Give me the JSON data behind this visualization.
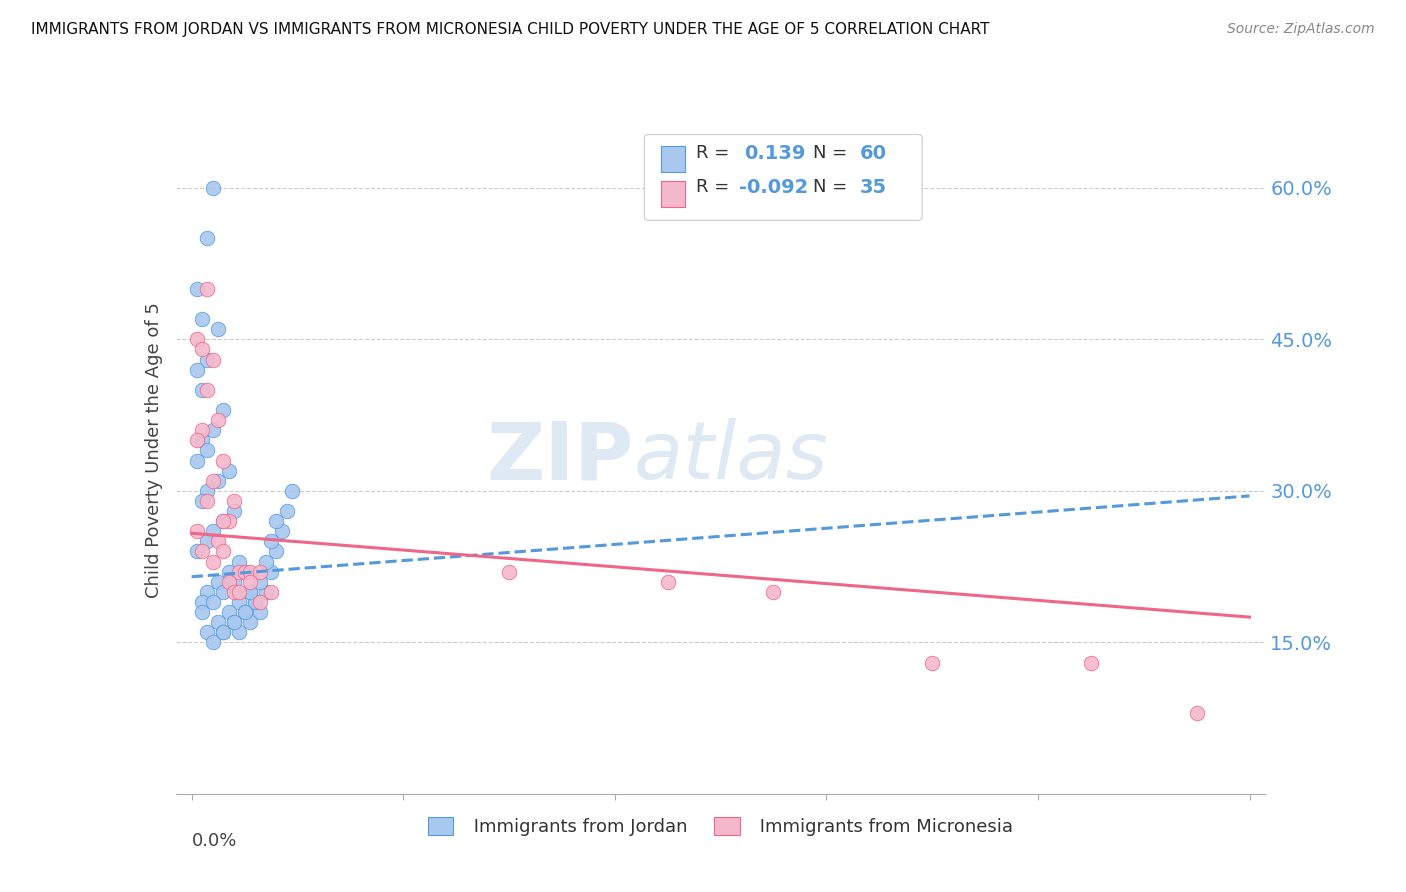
{
  "title": "IMMIGRANTS FROM JORDAN VS IMMIGRANTS FROM MICRONESIA CHILD POVERTY UNDER THE AGE OF 5 CORRELATION CHART",
  "source": "Source: ZipAtlas.com",
  "ylabel": "Child Poverty Under the Age of 5",
  "r_jordan": 0.139,
  "n_jordan": 60,
  "r_micronesia": -0.092,
  "n_micronesia": 35,
  "color_jordan": "#a8c8f0",
  "color_micronesia": "#f4b8cc",
  "trendline_jordan": "#5599dd",
  "trendline_micronesia": "#ee6688",
  "xlim": [
    0.0,
    0.2
  ],
  "ylim": [
    0.0,
    0.68
  ],
  "yticks": [
    0.15,
    0.3,
    0.45,
    0.6
  ],
  "ytick_labels": [
    "15.0%",
    "30.0%",
    "45.0%",
    "60.0%"
  ],
  "xticks": [
    0.0,
    0.04,
    0.08,
    0.12,
    0.16,
    0.2
  ],
  "jordan_x": [
    0.004,
    0.003,
    0.001,
    0.002,
    0.005,
    0.003,
    0.001,
    0.002,
    0.006,
    0.004,
    0.002,
    0.003,
    0.001,
    0.007,
    0.005,
    0.003,
    0.002,
    0.008,
    0.006,
    0.004,
    0.003,
    0.001,
    0.009,
    0.007,
    0.005,
    0.003,
    0.002,
    0.01,
    0.008,
    0.006,
    0.004,
    0.002,
    0.011,
    0.009,
    0.007,
    0.005,
    0.003,
    0.012,
    0.01,
    0.008,
    0.006,
    0.004,
    0.013,
    0.011,
    0.009,
    0.014,
    0.012,
    0.01,
    0.008,
    0.006,
    0.015,
    0.013,
    0.011,
    0.016,
    0.014,
    0.017,
    0.015,
    0.018,
    0.016,
    0.019
  ],
  "jordan_y": [
    0.6,
    0.55,
    0.5,
    0.47,
    0.46,
    0.43,
    0.42,
    0.4,
    0.38,
    0.36,
    0.35,
    0.34,
    0.33,
    0.32,
    0.31,
    0.3,
    0.29,
    0.28,
    0.27,
    0.26,
    0.25,
    0.24,
    0.23,
    0.22,
    0.21,
    0.2,
    0.19,
    0.22,
    0.21,
    0.2,
    0.19,
    0.18,
    0.2,
    0.19,
    0.18,
    0.17,
    0.16,
    0.19,
    0.18,
    0.17,
    0.16,
    0.15,
    0.18,
    0.17,
    0.16,
    0.2,
    0.19,
    0.18,
    0.17,
    0.16,
    0.22,
    0.21,
    0.2,
    0.24,
    0.23,
    0.26,
    0.25,
    0.28,
    0.27,
    0.3
  ],
  "micronesia_x": [
    0.001,
    0.002,
    0.003,
    0.001,
    0.002,
    0.004,
    0.003,
    0.005,
    0.002,
    0.001,
    0.006,
    0.004,
    0.003,
    0.007,
    0.005,
    0.008,
    0.006,
    0.004,
    0.009,
    0.007,
    0.01,
    0.008,
    0.006,
    0.011,
    0.009,
    0.013,
    0.011,
    0.015,
    0.013,
    0.06,
    0.09,
    0.11,
    0.14,
    0.17,
    0.19
  ],
  "micronesia_y": [
    0.26,
    0.24,
    0.5,
    0.45,
    0.44,
    0.43,
    0.4,
    0.37,
    0.36,
    0.35,
    0.33,
    0.31,
    0.29,
    0.27,
    0.25,
    0.29,
    0.27,
    0.23,
    0.22,
    0.21,
    0.22,
    0.2,
    0.24,
    0.22,
    0.2,
    0.22,
    0.21,
    0.2,
    0.19,
    0.22,
    0.21,
    0.2,
    0.13,
    0.13,
    0.08
  ]
}
